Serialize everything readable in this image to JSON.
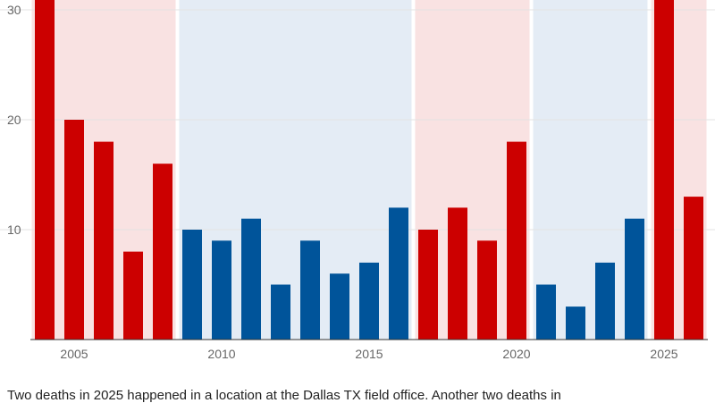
{
  "chart_data": {
    "type": "bar",
    "x": [
      2004,
      2005,
      2006,
      2007,
      2008,
      2009,
      2010,
      2011,
      2012,
      2013,
      2014,
      2015,
      2016,
      2017,
      2018,
      2019,
      2020,
      2021,
      2022,
      2023,
      2024,
      2025,
      2026
    ],
    "values": [
      31,
      20,
      18,
      8,
      16,
      10,
      9,
      11,
      5,
      9,
      6,
      7,
      12,
      10,
      12,
      9,
      18,
      5,
      3,
      7,
      11,
      31,
      13
    ],
    "party": [
      "R",
      "R",
      "R",
      "R",
      "R",
      "D",
      "D",
      "D",
      "D",
      "D",
      "D",
      "D",
      "D",
      "R",
      "R",
      "R",
      "R",
      "D",
      "D",
      "D",
      "D",
      "R",
      "R"
    ],
    "bands": [
      {
        "party": "R",
        "from": 2004,
        "to": 2008
      },
      {
        "party": "D",
        "from": 2009,
        "to": 2016
      },
      {
        "party": "R",
        "from": 2017,
        "to": 2020
      },
      {
        "party": "D",
        "from": 2021,
        "to": 2024
      },
      {
        "party": "R",
        "from": 2025,
        "to": 2026
      }
    ],
    "xticks": [
      2005,
      2010,
      2015,
      2020,
      2025
    ],
    "yticks": [
      10,
      20,
      30
    ],
    "ylim": [
      0,
      31
    ],
    "grid": true,
    "title": "",
    "xlabel": "",
    "ylabel": ""
  },
  "colors": {
    "R": "#cc0000",
    "D": "#00549a",
    "R_band": "#f9e2e2",
    "D_band": "#e4ecf5",
    "grid": "#e3e3e3",
    "axis": "#333333"
  },
  "caption": "Two deaths in 2025 happened in a location at the Dallas TX field office. Another two deaths in"
}
